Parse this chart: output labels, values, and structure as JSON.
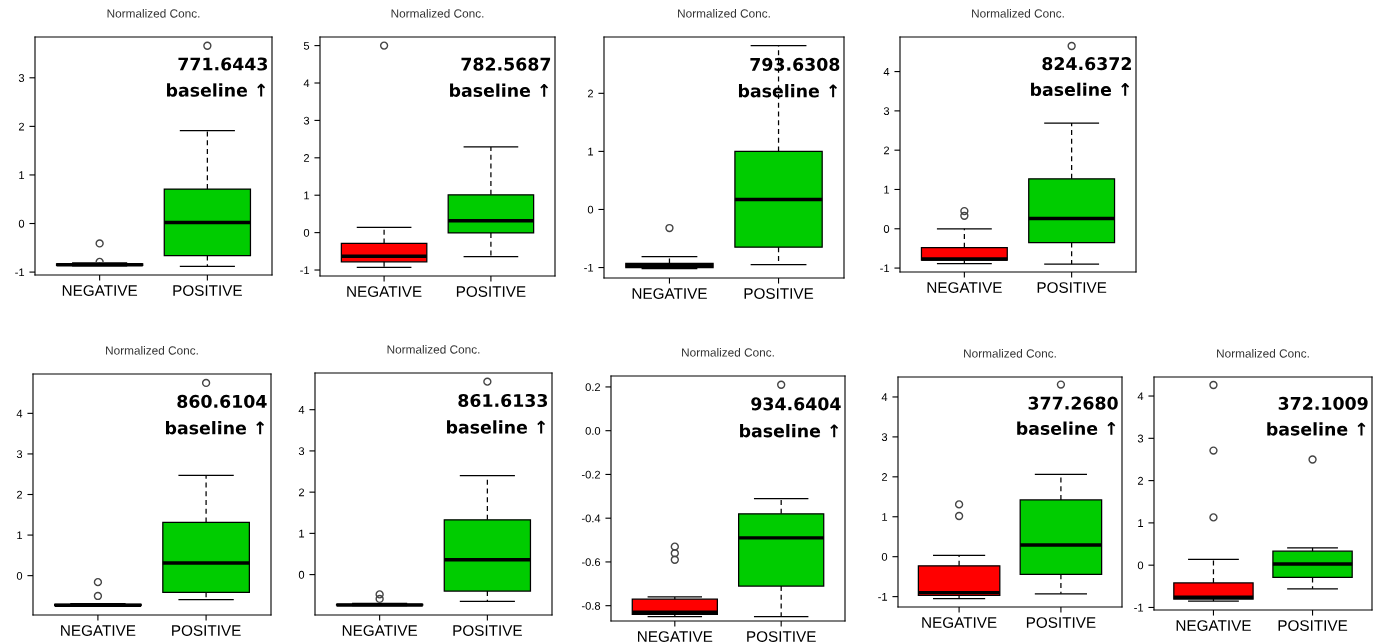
{
  "chart_data": [
    {
      "type": "box",
      "title": "Normalized Conc.",
      "categories": [
        "NEGATIVE",
        "POSITIVE"
      ],
      "colors": [
        "#ff0000",
        "#00cc00"
      ],
      "ylim": [
        -1.06,
        3.84
      ],
      "yticks": [
        -1,
        0,
        1,
        2,
        3
      ],
      "annotations": [
        "771.6443",
        "baseline ↑"
      ],
      "boxes": [
        {
          "low": -0.87,
          "q1": -0.86,
          "median": -0.85,
          "q3": -0.83,
          "high": -0.81,
          "outliers": [
            -0.79,
            -0.41
          ]
        },
        {
          "low": -0.88,
          "q1": -0.66,
          "median": 0.02,
          "q3": 0.71,
          "high": 1.91,
          "outliers": [
            3.66
          ]
        }
      ]
    },
    {
      "type": "box",
      "title": "Normalized Conc.",
      "categories": [
        "NEGATIVE",
        "POSITIVE"
      ],
      "colors": [
        "#ff0000",
        "#00cc00"
      ],
      "ylim": [
        -1.16,
        5.23
      ],
      "yticks": [
        -1,
        0,
        1,
        2,
        3,
        4,
        5
      ],
      "annotations": [
        "782.5687",
        "baseline ↑"
      ],
      "boxes": [
        {
          "low": -0.93,
          "q1": -0.78,
          "median": -0.63,
          "q3": -0.29,
          "high": 0.14,
          "outliers": [
            5.0
          ]
        },
        {
          "low": -0.64,
          "q1": -0.01,
          "median": 0.32,
          "q3": 1.01,
          "high": 2.29
        }
      ]
    },
    {
      "type": "box",
      "title": "Normalized Conc.",
      "categories": [
        "NEGATIVE",
        "POSITIVE"
      ],
      "colors": [
        "#ff0000",
        "#00cc00"
      ],
      "ylim": [
        -1.18,
        2.97
      ],
      "yticks": [
        -1,
        0,
        1,
        2
      ],
      "annotations": [
        "793.6308",
        "baseline ↑"
      ],
      "boxes": [
        {
          "low": -1.02,
          "q1": -1.0,
          "median": -0.96,
          "q3": -0.93,
          "high": -0.81,
          "outliers": [
            -0.32
          ]
        },
        {
          "low": -0.95,
          "q1": -0.65,
          "median": 0.17,
          "q3": 1.0,
          "high": 2.82
        }
      ]
    },
    {
      "type": "box",
      "title": "Normalized Conc.",
      "categories": [
        "NEGATIVE",
        "POSITIVE"
      ],
      "colors": [
        "#ff0000",
        "#00cc00"
      ],
      "ylim": [
        -1.1,
        4.88
      ],
      "yticks": [
        -1,
        0,
        1,
        2,
        3,
        4
      ],
      "annotations": [
        "824.6372",
        "baseline ↑"
      ],
      "boxes": [
        {
          "low": -0.89,
          "q1": -0.8,
          "median": -0.77,
          "q3": -0.48,
          "high": 0.0,
          "outliers": [
            0.33,
            0.45
          ]
        },
        {
          "low": -0.9,
          "q1": -0.35,
          "median": 0.26,
          "q3": 1.27,
          "high": 2.69,
          "outliers": [
            4.65
          ]
        }
      ]
    },
    {
      "type": "box",
      "title": "Normalized Conc.",
      "categories": [
        "NEGATIVE",
        "POSITIVE"
      ],
      "colors": [
        "#ff0000",
        "#00cc00"
      ],
      "ylim": [
        -0.97,
        4.97
      ],
      "yticks": [
        0,
        1,
        2,
        3,
        4
      ],
      "annotations": [
        "860.6104",
        "baseline ↑"
      ],
      "boxes": [
        {
          "low": -0.74,
          "q1": -0.73,
          "median": -0.73,
          "q3": -0.71,
          "high": -0.69,
          "outliers": [
            -0.5,
            -0.16
          ]
        },
        {
          "low": -0.59,
          "q1": -0.41,
          "median": 0.31,
          "q3": 1.31,
          "high": 2.47,
          "outliers": [
            4.75
          ]
        }
      ]
    },
    {
      "type": "box",
      "title": "Normalized Conc.",
      "categories": [
        "NEGATIVE",
        "POSITIVE"
      ],
      "colors": [
        "#ff0000",
        "#00cc00"
      ],
      "ylim": [
        -0.98,
        4.89
      ],
      "yticks": [
        0,
        1,
        2,
        3,
        4
      ],
      "annotations": [
        "861.6133",
        "baseline ↑"
      ],
      "boxes": [
        {
          "low": -0.75,
          "q1": -0.74,
          "median": -0.74,
          "q3": -0.72,
          "high": -0.7,
          "outliers": [
            -0.59,
            -0.48
          ]
        },
        {
          "low": -0.65,
          "q1": -0.4,
          "median": 0.36,
          "q3": 1.33,
          "high": 2.4,
          "outliers": [
            4.68
          ]
        }
      ]
    },
    {
      "type": "box",
      "title": "Normalized Conc.",
      "categories": [
        "NEGATIVE",
        "POSITIVE"
      ],
      "colors": [
        "#ff0000",
        "#00cc00"
      ],
      "ylim": [
        -0.87,
        0.25
      ],
      "yticks": [
        {
          "value": -0.8,
          "label": "-0.8"
        },
        {
          "value": -0.6,
          "label": "-0.6"
        },
        {
          "value": -0.4,
          "label": "-0.4"
        },
        {
          "value": -0.2,
          "label": "-0.2"
        },
        {
          "value": 0,
          "label": "0.0"
        },
        {
          "value": 0.2,
          "label": "0.2"
        }
      ],
      "annotations": [
        "934.6404",
        "baseline ↑"
      ],
      "boxes": [
        {
          "low": -0.85,
          "q1": -0.84,
          "median": -0.83,
          "q3": -0.77,
          "high": -0.76,
          "outliers": [
            -0.59,
            -0.56,
            -0.53
          ]
        },
        {
          "low": -0.85,
          "q1": -0.71,
          "median": -0.49,
          "q3": -0.38,
          "high": -0.31,
          "outliers": [
            0.21
          ]
        }
      ]
    },
    {
      "type": "box",
      "title": "Normalized Conc.",
      "categories": [
        "NEGATIVE",
        "POSITIVE"
      ],
      "colors": [
        "#ff0000",
        "#00cc00"
      ],
      "ylim": [
        -1.26,
        4.5
      ],
      "yticks": [
        -1,
        0,
        1,
        2,
        3,
        4
      ],
      "annotations": [
        "377.2680",
        "baseline ↑"
      ],
      "boxes": [
        {
          "low": -1.05,
          "q1": -0.97,
          "median": -0.9,
          "q3": -0.23,
          "high": 0.03,
          "outliers": [
            1.02,
            1.31
          ]
        },
        {
          "low": -0.93,
          "q1": -0.44,
          "median": 0.29,
          "q3": 1.42,
          "high": 2.06,
          "outliers": [
            4.31
          ]
        }
      ]
    },
    {
      "type": "box",
      "title": "Normalized Conc.",
      "categories": [
        "NEGATIVE",
        "POSITIVE"
      ],
      "colors": [
        "#ff0000",
        "#00cc00"
      ],
      "ylim": [
        -1.06,
        4.45
      ],
      "yticks": [
        -1,
        0,
        1,
        2,
        3,
        4
      ],
      "annotations": [
        "372.1009",
        "baseline ↑"
      ],
      "boxes": [
        {
          "low": -0.85,
          "q1": -0.8,
          "median": -0.76,
          "q3": -0.42,
          "high": 0.14,
          "outliers": [
            1.13,
            2.71,
            4.26
          ]
        },
        {
          "low": -0.56,
          "q1": -0.29,
          "median": 0.03,
          "q3": 0.33,
          "high": 0.41,
          "outliers": [
            2.5
          ]
        }
      ]
    }
  ]
}
